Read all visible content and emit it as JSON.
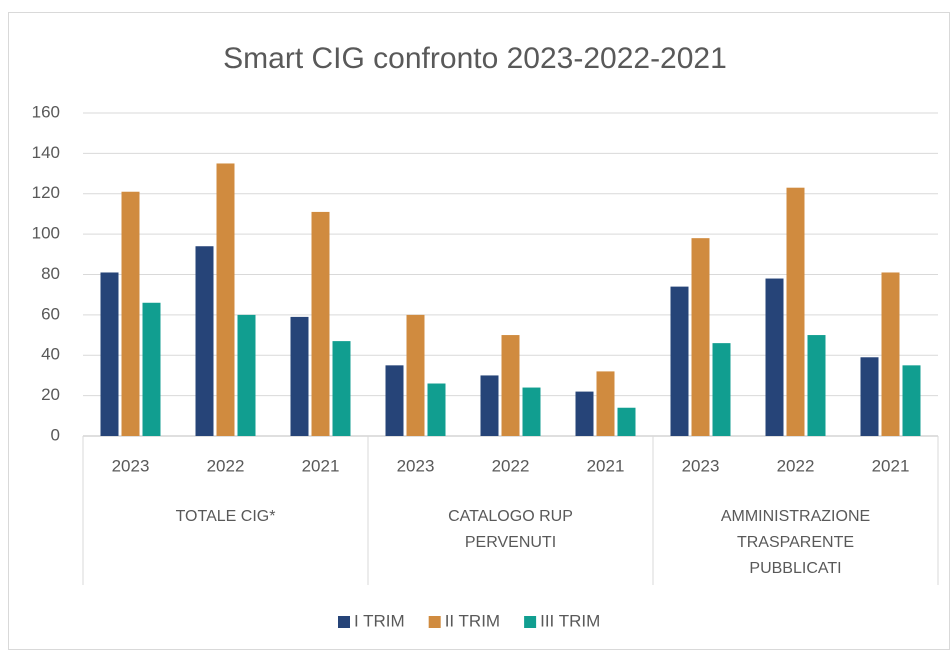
{
  "chart_data": {
    "type": "bar",
    "title": "Smart CIG confronto 2023-2022-2021",
    "categories": [
      "2023",
      "2022",
      "2021",
      "2023",
      "2022",
      "2021",
      "2023",
      "2022",
      "2021"
    ],
    "groups": [
      "TOTALE CIG*",
      "CATALOGO RUP PERVENUTI",
      "AMMINISTRAZIONE TRASPARENTE PUBBLICATI"
    ],
    "series": [
      {
        "name": "I TRIM",
        "color": "#264478",
        "values": [
          81,
          94,
          59,
          35,
          30,
          22,
          74,
          78,
          39
        ]
      },
      {
        "name": "II TRIM",
        "color": "#d08b3f",
        "values": [
          121,
          135,
          111,
          60,
          50,
          32,
          98,
          123,
          81
        ]
      },
      {
        "name": "III TRIM",
        "color": "#119e90",
        "values": [
          66,
          60,
          47,
          26,
          24,
          14,
          46,
          50,
          35
        ]
      }
    ],
    "ylim": [
      0,
      160
    ],
    "yticks": [
      0,
      20,
      40,
      60,
      80,
      100,
      120,
      140,
      160
    ],
    "grid": true,
    "legend": "bottom"
  }
}
